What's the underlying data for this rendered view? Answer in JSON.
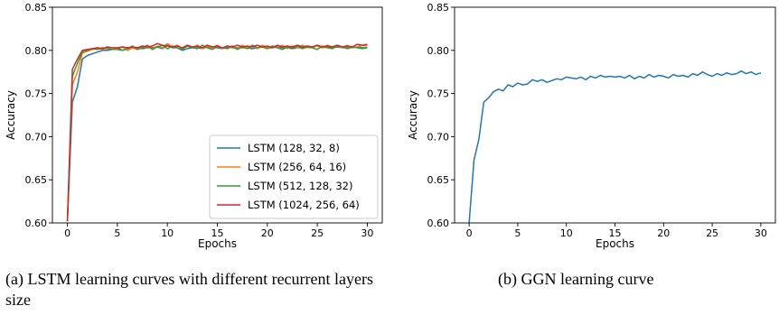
{
  "captions": {
    "a": "(a) LSTM learning curves with different recurrent layers size",
    "b": "(b) GGN learning curve"
  },
  "chart_data": [
    {
      "type": "line",
      "xlabel": "Epochs",
      "ylabel": "Accuracy",
      "xlim": [
        -1.5,
        31.5
      ],
      "ylim": [
        0.6,
        0.85
      ],
      "xticks": [
        0,
        5,
        10,
        15,
        20,
        25,
        30
      ],
      "yticks": [
        0.6,
        0.65,
        0.7,
        0.75,
        0.8,
        0.85
      ],
      "grid": false,
      "legend_position": "lower-right",
      "series": [
        {
          "name": "LSTM (128, 32, 8)",
          "color": "#1f77b4",
          "x": [
            0,
            0.5,
            1,
            1.5,
            2,
            2.5,
            3,
            3.5,
            4,
            4.5,
            5,
            5.5,
            6,
            6.5,
            7,
            7.5,
            8,
            8.5,
            9,
            9.5,
            10,
            10.5,
            11,
            11.5,
            12,
            12.5,
            13,
            13.5,
            14,
            14.5,
            15,
            15.5,
            16,
            16.5,
            17,
            17.5,
            18,
            18.5,
            19,
            19.5,
            20,
            20.5,
            21,
            21.5,
            22,
            22.5,
            23,
            23.5,
            24,
            24.5,
            25,
            25.5,
            26,
            26.5,
            27,
            27.5,
            28,
            28.5,
            29,
            29.5,
            30
          ],
          "y": [
            0.602,
            0.74,
            0.758,
            0.79,
            0.794,
            0.796,
            0.798,
            0.8,
            0.8,
            0.801,
            0.801,
            0.8,
            0.802,
            0.803,
            0.803,
            0.802,
            0.803,
            0.803,
            0.804,
            0.802,
            0.806,
            0.803,
            0.803,
            0.8,
            0.802,
            0.803,
            0.803,
            0.802,
            0.804,
            0.803,
            0.803,
            0.802,
            0.804,
            0.803,
            0.803,
            0.803,
            0.803,
            0.802,
            0.803,
            0.804,
            0.803,
            0.803,
            0.804,
            0.803,
            0.803,
            0.802,
            0.803,
            0.803,
            0.804,
            0.803,
            0.806,
            0.803,
            0.804,
            0.803,
            0.804,
            0.803,
            0.803,
            0.803,
            0.804,
            0.803,
            0.803
          ]
        },
        {
          "name": "LSTM (256, 64, 16)",
          "color": "#ff7f0e",
          "x": [
            0,
            0.5,
            1,
            1.5,
            2,
            2.5,
            3,
            3.5,
            4,
            4.5,
            5,
            5.5,
            6,
            6.5,
            7,
            7.5,
            8,
            8.5,
            9,
            9.5,
            10,
            10.5,
            11,
            11.5,
            12,
            12.5,
            13,
            13.5,
            14,
            14.5,
            15,
            15.5,
            16,
            16.5,
            17,
            17.5,
            18,
            18.5,
            19,
            19.5,
            20,
            20.5,
            21,
            21.5,
            22,
            22.5,
            23,
            23.5,
            24,
            24.5,
            25,
            25.5,
            26,
            26.5,
            27,
            27.5,
            28,
            28.5,
            29,
            29.5,
            30
          ],
          "y": [
            0.602,
            0.76,
            0.775,
            0.797,
            0.799,
            0.801,
            0.802,
            0.801,
            0.803,
            0.801,
            0.802,
            0.804,
            0.8,
            0.803,
            0.801,
            0.804,
            0.803,
            0.802,
            0.805,
            0.803,
            0.808,
            0.804,
            0.806,
            0.802,
            0.805,
            0.803,
            0.806,
            0.802,
            0.805,
            0.803,
            0.806,
            0.802,
            0.805,
            0.803,
            0.802,
            0.806,
            0.803,
            0.805,
            0.802,
            0.806,
            0.803,
            0.805,
            0.803,
            0.806,
            0.802,
            0.805,
            0.803,
            0.806,
            0.803,
            0.804,
            0.805,
            0.803,
            0.806,
            0.804,
            0.805,
            0.803,
            0.806,
            0.803,
            0.804,
            0.806,
            0.805
          ]
        },
        {
          "name": "LSTM (512, 128, 32)",
          "color": "#2ca02c",
          "x": [
            0,
            0.5,
            1,
            1.5,
            2,
            2.5,
            3,
            3.5,
            4,
            4.5,
            5,
            5.5,
            6,
            6.5,
            7,
            7.5,
            8,
            8.5,
            9,
            9.5,
            10,
            10.5,
            11,
            11.5,
            12,
            12.5,
            13,
            13.5,
            14,
            14.5,
            15,
            15.5,
            16,
            16.5,
            17,
            17.5,
            18,
            18.5,
            19,
            19.5,
            20,
            20.5,
            21,
            21.5,
            22,
            22.5,
            23,
            23.5,
            24,
            24.5,
            25,
            25.5,
            26,
            26.5,
            27,
            27.5,
            28,
            28.5,
            29,
            29.5,
            30
          ],
          "y": [
            0.602,
            0.77,
            0.785,
            0.798,
            0.8,
            0.802,
            0.801,
            0.803,
            0.802,
            0.801,
            0.803,
            0.8,
            0.802,
            0.805,
            0.801,
            0.803,
            0.806,
            0.801,
            0.804,
            0.806,
            0.802,
            0.805,
            0.803,
            0.801,
            0.805,
            0.803,
            0.802,
            0.806,
            0.803,
            0.801,
            0.805,
            0.803,
            0.802,
            0.805,
            0.801,
            0.804,
            0.802,
            0.806,
            0.803,
            0.804,
            0.802,
            0.805,
            0.803,
            0.801,
            0.804,
            0.803,
            0.805,
            0.802,
            0.804,
            0.803,
            0.801,
            0.805,
            0.803,
            0.802,
            0.805,
            0.804,
            0.802,
            0.804,
            0.803,
            0.802,
            0.803
          ]
        },
        {
          "name": "LSTM (1024, 256, 64)",
          "color": "#d62728",
          "x": [
            0,
            0.5,
            1,
            1.5,
            2,
            2.5,
            3,
            3.5,
            4,
            4.5,
            5,
            5.5,
            6,
            6.5,
            7,
            7.5,
            8,
            8.5,
            9,
            9.5,
            10,
            10.5,
            11,
            11.5,
            12,
            12.5,
            13,
            13.5,
            14,
            14.5,
            15,
            15.5,
            16,
            16.5,
            17,
            17.5,
            18,
            18.5,
            19,
            19.5,
            20,
            20.5,
            21,
            21.5,
            22,
            22.5,
            23,
            23.5,
            24,
            24.5,
            25,
            25.5,
            26,
            26.5,
            27,
            27.5,
            28,
            28.5,
            29,
            29.5,
            30
          ],
          "y": [
            0.602,
            0.778,
            0.79,
            0.8,
            0.801,
            0.802,
            0.803,
            0.802,
            0.804,
            0.803,
            0.803,
            0.804,
            0.803,
            0.804,
            0.803,
            0.805,
            0.804,
            0.805,
            0.808,
            0.806,
            0.805,
            0.804,
            0.805,
            0.803,
            0.806,
            0.804,
            0.805,
            0.803,
            0.806,
            0.804,
            0.805,
            0.803,
            0.805,
            0.804,
            0.806,
            0.804,
            0.805,
            0.804,
            0.806,
            0.804,
            0.805,
            0.803,
            0.806,
            0.804,
            0.805,
            0.804,
            0.806,
            0.804,
            0.805,
            0.804,
            0.806,
            0.804,
            0.805,
            0.804,
            0.806,
            0.804,
            0.805,
            0.804,
            0.807,
            0.806,
            0.807
          ]
        }
      ]
    },
    {
      "type": "line",
      "xlabel": "Epochs",
      "ylabel": "Accuracy",
      "xlim": [
        -1.5,
        31.5
      ],
      "ylim": [
        0.6,
        0.85
      ],
      "xticks": [
        0,
        5,
        10,
        15,
        20,
        25,
        30
      ],
      "yticks": [
        0.6,
        0.65,
        0.7,
        0.75,
        0.8,
        0.85
      ],
      "grid": false,
      "series": [
        {
          "color": "#1f77b4",
          "x": [
            0,
            0.5,
            1,
            1.5,
            2,
            2.5,
            3,
            3.5,
            4,
            4.5,
            5,
            5.5,
            6,
            6.5,
            7,
            7.5,
            8,
            8.5,
            9,
            9.5,
            10,
            10.5,
            11,
            11.5,
            12,
            12.5,
            13,
            13.5,
            14,
            14.5,
            15,
            15.5,
            16,
            16.5,
            17,
            17.5,
            18,
            18.5,
            19,
            19.5,
            20,
            20.5,
            21,
            21.5,
            22,
            22.5,
            23,
            23.5,
            24,
            24.5,
            25,
            25.5,
            26,
            26.5,
            27,
            27.5,
            28,
            28.5,
            29,
            29.5,
            30
          ],
          "y": [
            0.6,
            0.673,
            0.697,
            0.74,
            0.745,
            0.752,
            0.755,
            0.753,
            0.76,
            0.758,
            0.762,
            0.76,
            0.761,
            0.766,
            0.764,
            0.766,
            0.763,
            0.765,
            0.767,
            0.766,
            0.769,
            0.768,
            0.767,
            0.769,
            0.766,
            0.77,
            0.768,
            0.771,
            0.769,
            0.77,
            0.769,
            0.77,
            0.768,
            0.771,
            0.767,
            0.77,
            0.768,
            0.772,
            0.769,
            0.771,
            0.77,
            0.768,
            0.772,
            0.77,
            0.771,
            0.769,
            0.773,
            0.771,
            0.775,
            0.772,
            0.77,
            0.773,
            0.771,
            0.774,
            0.772,
            0.773,
            0.776,
            0.773,
            0.775,
            0.772,
            0.774
          ]
        }
      ]
    }
  ]
}
